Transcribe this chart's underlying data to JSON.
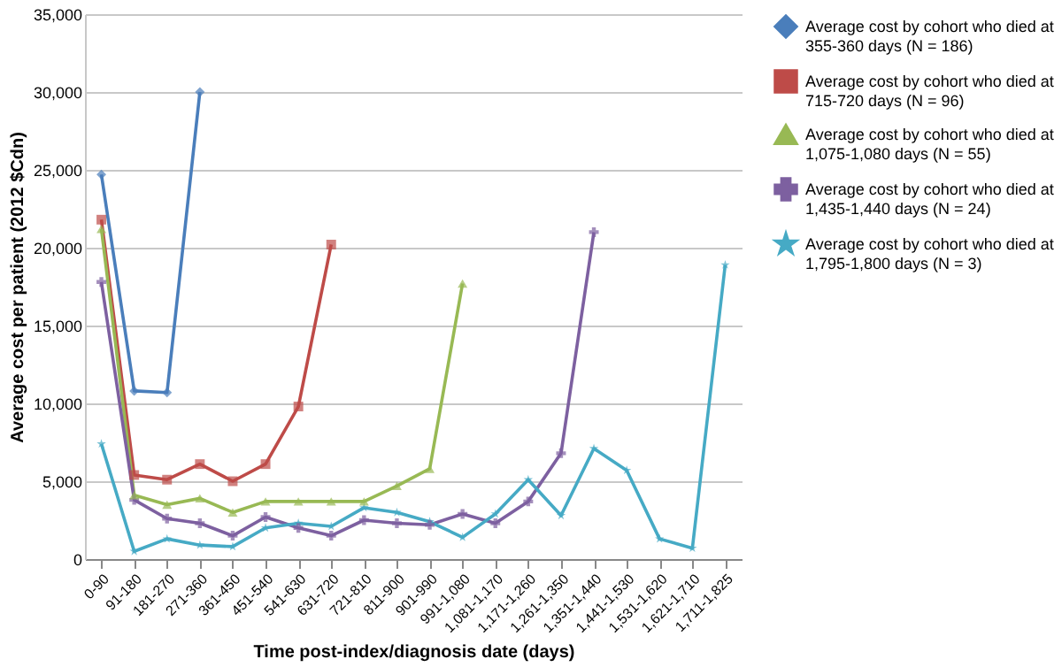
{
  "chart_data": {
    "type": "line",
    "xlabel": "Time post-index/diagnosis date (days)",
    "ylabel": "Average cost per patient (2012 $Cdn)",
    "categories": [
      "0-90",
      "91-180",
      "181-270",
      "271-360",
      "361-450",
      "451-540",
      "541-630",
      "631-720",
      "721-810",
      "811-900",
      "901-990",
      "991-1,080",
      "1,081-1,170",
      "1,171-1,260",
      "1,261-1,350",
      "1,351-1,440",
      "1,441-1,530",
      "1,531-1,620",
      "1,621-1,710",
      "1,711-1,825"
    ],
    "ylim": [
      0,
      35000
    ],
    "yticks": [
      {
        "value": 0,
        "label": "0"
      },
      {
        "value": 5000,
        "label": "5,000"
      },
      {
        "value": 10000,
        "label": "10,000"
      },
      {
        "value": 15000,
        "label": "15,000"
      },
      {
        "value": 20000,
        "label": "20,000"
      },
      {
        "value": 25000,
        "label": "25,000"
      },
      {
        "value": 30000,
        "label": "30,000"
      },
      {
        "value": 35000,
        "label": "35,000"
      }
    ],
    "grid": "y",
    "legend": "right",
    "series": [
      {
        "name": "Average cost by cohort who died at 355-360 days (N = 186)",
        "color": "#4a7ebb",
        "marker": "diamond",
        "values": [
          24700,
          10800,
          10700,
          30000,
          null,
          null,
          null,
          null,
          null,
          null,
          null,
          null,
          null,
          null,
          null,
          null,
          null,
          null,
          null,
          null
        ]
      },
      {
        "name": "Average cost by cohort who died at 715-720 days (N = 96)",
        "color": "#be4b48",
        "marker": "square",
        "values": [
          21800,
          5400,
          5100,
          6100,
          5000,
          6100,
          9800,
          20200,
          null,
          null,
          null,
          null,
          null,
          null,
          null,
          null,
          null,
          null,
          null,
          null
        ]
      },
      {
        "name": "Average cost by cohort who died at 1,075-1,080 days (N = 55)",
        "color": "#98b954",
        "marker": "triangle",
        "values": [
          21200,
          4100,
          3500,
          3900,
          3000,
          3700,
          3700,
          3700,
          3700,
          4700,
          5800,
          17700,
          null,
          null,
          null,
          null,
          null,
          null,
          null,
          null
        ]
      },
      {
        "name": "Average cost by cohort who died at 1,435-1,440 days (N = 24)",
        "color": "#7d60a0",
        "marker": "cross",
        "values": [
          17800,
          3800,
          2600,
          2300,
          1500,
          2700,
          2000,
          1500,
          2500,
          2300,
          2200,
          2900,
          2300,
          3700,
          6800,
          21000,
          null,
          null,
          null,
          null
        ]
      },
      {
        "name": "Average cost by cohort who died at 1,795-1,800 days (N = 3)",
        "color": "#46aac5",
        "marker": "star",
        "values": [
          7400,
          500,
          1300,
          900,
          800,
          2000,
          2300,
          2100,
          3300,
          3000,
          2400,
          1400,
          2900,
          5100,
          2800,
          7100,
          5700,
          1300,
          700,
          18900
        ]
      }
    ]
  }
}
